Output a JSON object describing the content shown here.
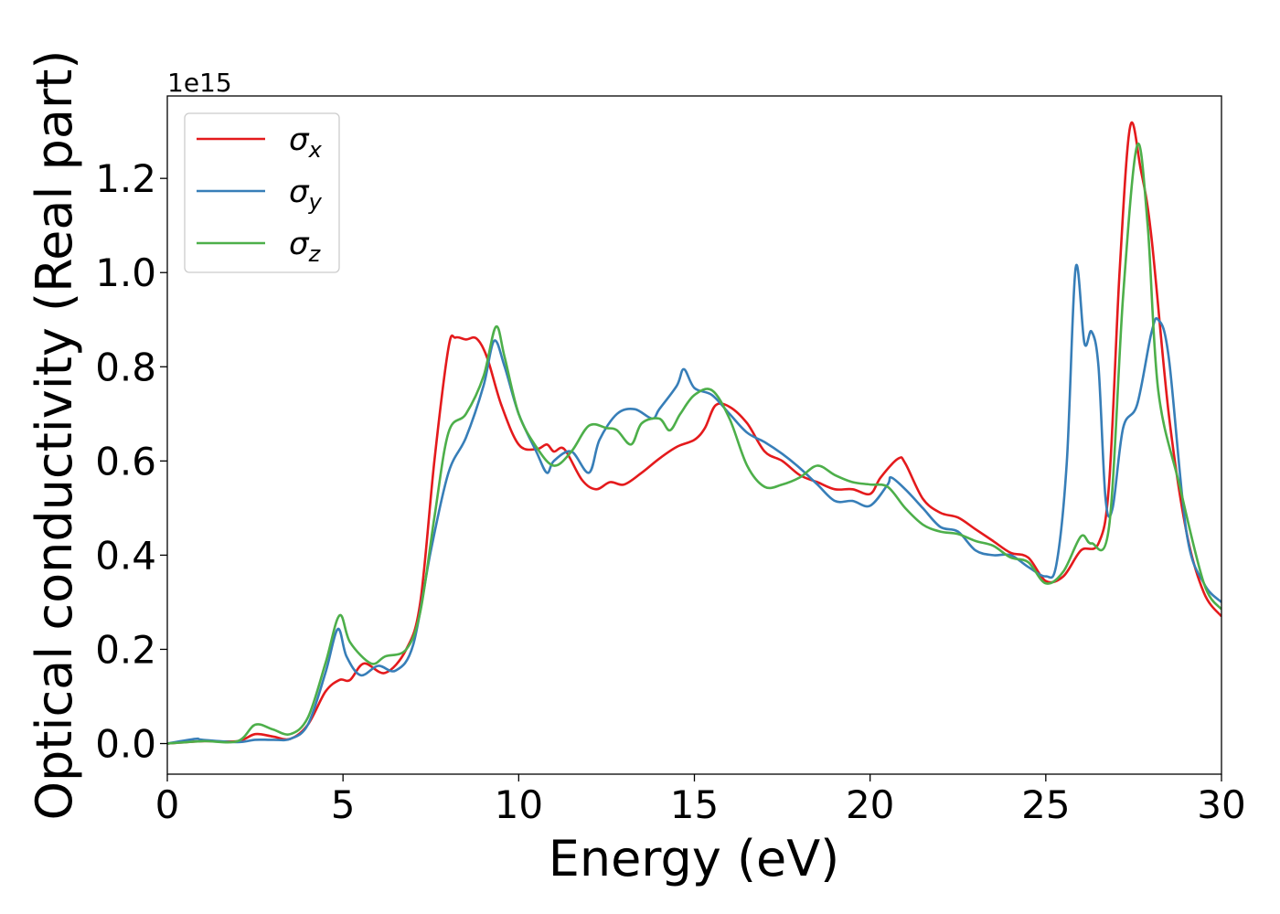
{
  "chart_data": {
    "type": "line",
    "title": "",
    "xlabel": "Energy (eV)",
    "ylabel": "Optical conductivity (Real part)",
    "y_offset_label": "1e15",
    "xlim": [
      0,
      30
    ],
    "ylim": [
      -0.065,
      1.375
    ],
    "x_ticks": [
      0,
      5,
      10,
      15,
      20,
      25,
      30
    ],
    "x_tick_labels": [
      "0",
      "5",
      "10",
      "15",
      "20",
      "25",
      "30"
    ],
    "y_ticks": [
      0.0,
      0.2,
      0.4,
      0.6,
      0.8,
      1.0,
      1.2
    ],
    "y_tick_labels": [
      "0.0",
      "0.2",
      "0.4",
      "0.6",
      "0.8",
      "1.0",
      "1.2"
    ],
    "grid": false,
    "legend_position": "upper-left",
    "series": [
      {
        "name": "σx",
        "legend_symbol": "σ",
        "legend_subscript": "x",
        "color": "#e41a1c",
        "points": [
          [
            0,
            0
          ],
          [
            1,
            0.005
          ],
          [
            2,
            0.005
          ],
          [
            2.5,
            0.02
          ],
          [
            3,
            0.015
          ],
          [
            3.5,
            0.01
          ],
          [
            4,
            0.04
          ],
          [
            4.5,
            0.11
          ],
          [
            4.9,
            0.135
          ],
          [
            5.2,
            0.135
          ],
          [
            5.6,
            0.17
          ],
          [
            6.2,
            0.15
          ],
          [
            6.8,
            0.2
          ],
          [
            7.2,
            0.3
          ],
          [
            7.6,
            0.6
          ],
          [
            8,
            0.84
          ],
          [
            8.2,
            0.862
          ],
          [
            8.5,
            0.858
          ],
          [
            8.8,
            0.86
          ],
          [
            9.1,
            0.82
          ],
          [
            9.5,
            0.72
          ],
          [
            10,
            0.635
          ],
          [
            10.5,
            0.625
          ],
          [
            10.8,
            0.635
          ],
          [
            11,
            0.62
          ],
          [
            11.3,
            0.625
          ],
          [
            11.8,
            0.56
          ],
          [
            12.2,
            0.54
          ],
          [
            12.6,
            0.555
          ],
          [
            13,
            0.55
          ],
          [
            13.5,
            0.575
          ],
          [
            14,
            0.605
          ],
          [
            14.5,
            0.63
          ],
          [
            15,
            0.645
          ],
          [
            15.3,
            0.67
          ],
          [
            15.6,
            0.718
          ],
          [
            16,
            0.715
          ],
          [
            16.5,
            0.68
          ],
          [
            17,
            0.62
          ],
          [
            17.5,
            0.6
          ],
          [
            18,
            0.57
          ],
          [
            18.5,
            0.555
          ],
          [
            19,
            0.54
          ],
          [
            19.5,
            0.54
          ],
          [
            20,
            0.53
          ],
          [
            20.3,
            0.565
          ],
          [
            20.8,
            0.605
          ],
          [
            21,
            0.595
          ],
          [
            21.5,
            0.52
          ],
          [
            22,
            0.49
          ],
          [
            22.5,
            0.48
          ],
          [
            23,
            0.455
          ],
          [
            23.5,
            0.43
          ],
          [
            24,
            0.405
          ],
          [
            24.5,
            0.395
          ],
          [
            25,
            0.345
          ],
          [
            25.5,
            0.355
          ],
          [
            26,
            0.41
          ],
          [
            26.5,
            0.425
          ],
          [
            26.8,
            0.55
          ],
          [
            27.1,
            1.0
          ],
          [
            27.4,
            1.31
          ],
          [
            27.7,
            1.22
          ],
          [
            28,
            1.08
          ],
          [
            28.5,
            0.7
          ],
          [
            29,
            0.45
          ],
          [
            29.5,
            0.32
          ],
          [
            30,
            0.27
          ]
        ]
      },
      {
        "name": "σy",
        "legend_symbol": "σ",
        "legend_subscript": "y",
        "color": "#377eb8",
        "points": [
          [
            0,
            0
          ],
          [
            0.8,
            0.01
          ],
          [
            1,
            0.008
          ],
          [
            2,
            0.003
          ],
          [
            2.5,
            0.008
          ],
          [
            3,
            0.008
          ],
          [
            3.5,
            0.01
          ],
          [
            4,
            0.04
          ],
          [
            4.5,
            0.15
          ],
          [
            4.85,
            0.243
          ],
          [
            5.1,
            0.185
          ],
          [
            5.5,
            0.145
          ],
          [
            6,
            0.165
          ],
          [
            6.5,
            0.155
          ],
          [
            7,
            0.21
          ],
          [
            7.5,
            0.41
          ],
          [
            8,
            0.575
          ],
          [
            8.5,
            0.65
          ],
          [
            9,
            0.76
          ],
          [
            9.3,
            0.855
          ],
          [
            9.6,
            0.8
          ],
          [
            10,
            0.7
          ],
          [
            10.5,
            0.62
          ],
          [
            10.8,
            0.575
          ],
          [
            11,
            0.6
          ],
          [
            11.5,
            0.62
          ],
          [
            12,
            0.575
          ],
          [
            12.3,
            0.645
          ],
          [
            12.8,
            0.7
          ],
          [
            13.3,
            0.71
          ],
          [
            13.8,
            0.69
          ],
          [
            14,
            0.71
          ],
          [
            14.5,
            0.76
          ],
          [
            14.7,
            0.795
          ],
          [
            15,
            0.755
          ],
          [
            15.5,
            0.74
          ],
          [
            16,
            0.7
          ],
          [
            16.5,
            0.66
          ],
          [
            17,
            0.64
          ],
          [
            17.5,
            0.615
          ],
          [
            18,
            0.585
          ],
          [
            18.5,
            0.55
          ],
          [
            19,
            0.515
          ],
          [
            19.5,
            0.515
          ],
          [
            20,
            0.505
          ],
          [
            20.5,
            0.55
          ],
          [
            20.6,
            0.565
          ],
          [
            21,
            0.54
          ],
          [
            21.5,
            0.5
          ],
          [
            22,
            0.46
          ],
          [
            22.5,
            0.45
          ],
          [
            23,
            0.41
          ],
          [
            23.5,
            0.4
          ],
          [
            24,
            0.4
          ],
          [
            24.5,
            0.375
          ],
          [
            25,
            0.355
          ],
          [
            25.3,
            0.38
          ],
          [
            25.6,
            0.6
          ],
          [
            25.85,
            1.01
          ],
          [
            26.1,
            0.85
          ],
          [
            26.3,
            0.875
          ],
          [
            26.5,
            0.8
          ],
          [
            26.7,
            0.52
          ],
          [
            26.9,
            0.5
          ],
          [
            27.2,
            0.67
          ],
          [
            27.6,
            0.72
          ],
          [
            28,
            0.87
          ],
          [
            28.2,
            0.9
          ],
          [
            28.5,
            0.82
          ],
          [
            29,
            0.45
          ],
          [
            29.5,
            0.34
          ],
          [
            30,
            0.3
          ]
        ]
      },
      {
        "name": "σz",
        "legend_symbol": "σ",
        "legend_subscript": "z",
        "color": "#4daf4a",
        "points": [
          [
            0,
            0
          ],
          [
            1,
            0.005
          ],
          [
            2,
            0.005
          ],
          [
            2.5,
            0.04
          ],
          [
            3,
            0.03
          ],
          [
            3.5,
            0.02
          ],
          [
            4,
            0.055
          ],
          [
            4.5,
            0.17
          ],
          [
            4.9,
            0.272
          ],
          [
            5.2,
            0.215
          ],
          [
            5.8,
            0.17
          ],
          [
            6.2,
            0.185
          ],
          [
            6.8,
            0.2
          ],
          [
            7.2,
            0.28
          ],
          [
            7.6,
            0.48
          ],
          [
            8,
            0.66
          ],
          [
            8.5,
            0.7
          ],
          [
            9,
            0.78
          ],
          [
            9.35,
            0.885
          ],
          [
            9.6,
            0.82
          ],
          [
            10,
            0.7
          ],
          [
            10.5,
            0.63
          ],
          [
            11,
            0.59
          ],
          [
            11.5,
            0.62
          ],
          [
            12,
            0.675
          ],
          [
            12.5,
            0.67
          ],
          [
            12.8,
            0.665
          ],
          [
            13.2,
            0.635
          ],
          [
            13.5,
            0.68
          ],
          [
            14,
            0.69
          ],
          [
            14.3,
            0.665
          ],
          [
            14.6,
            0.7
          ],
          [
            15,
            0.74
          ],
          [
            15.5,
            0.75
          ],
          [
            16,
            0.69
          ],
          [
            16.5,
            0.59
          ],
          [
            17,
            0.545
          ],
          [
            17.5,
            0.55
          ],
          [
            18,
            0.565
          ],
          [
            18.5,
            0.59
          ],
          [
            19,
            0.57
          ],
          [
            19.5,
            0.555
          ],
          [
            20,
            0.55
          ],
          [
            20.5,
            0.545
          ],
          [
            21,
            0.5
          ],
          [
            21.5,
            0.465
          ],
          [
            22,
            0.45
          ],
          [
            22.5,
            0.445
          ],
          [
            23,
            0.43
          ],
          [
            23.5,
            0.42
          ],
          [
            24,
            0.395
          ],
          [
            24.5,
            0.385
          ],
          [
            25,
            0.34
          ],
          [
            25.5,
            0.365
          ],
          [
            26,
            0.44
          ],
          [
            26.3,
            0.425
          ],
          [
            26.8,
            0.46
          ],
          [
            27.2,
            0.95
          ],
          [
            27.6,
            1.27
          ],
          [
            27.9,
            1.1
          ],
          [
            28.2,
            0.75
          ],
          [
            28.8,
            0.55
          ],
          [
            29.5,
            0.34
          ],
          [
            30,
            0.285
          ]
        ]
      }
    ]
  }
}
